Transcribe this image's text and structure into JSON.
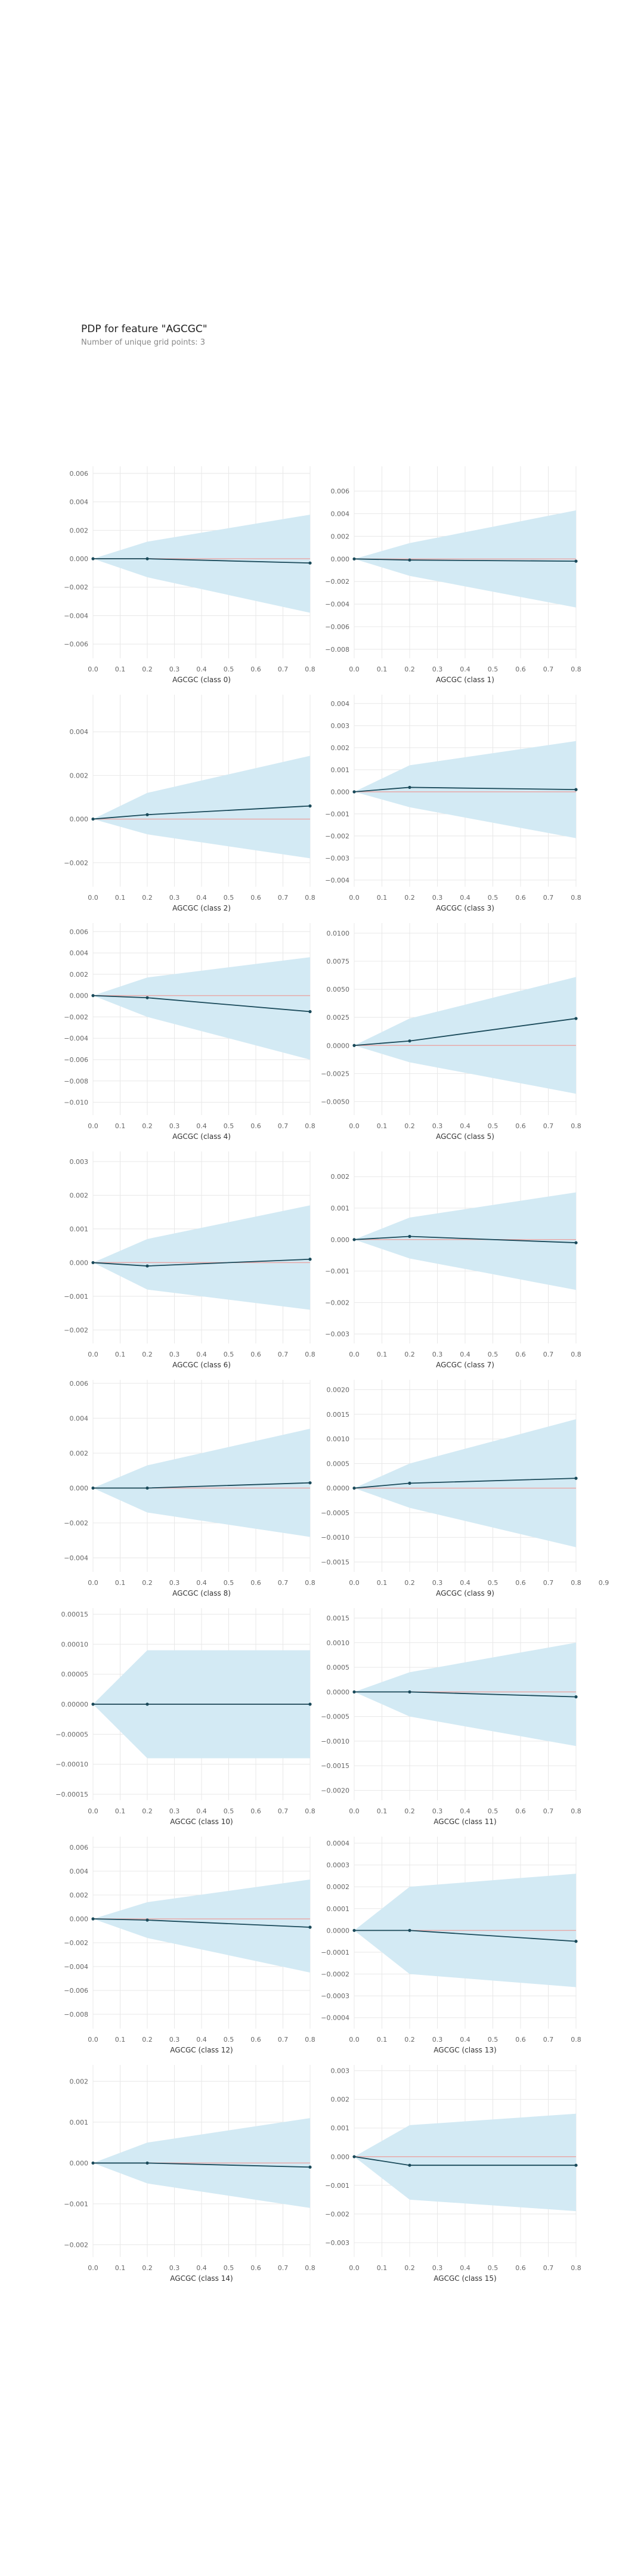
{
  "title": "PDP for feature \"AGCGC\"",
  "subtitle": "Number of unique grid points: 3",
  "style": {
    "band": "#d3eaf4",
    "line": "#1a4a5a",
    "zero": "#e7a9a9",
    "grid": "#e8e8e8",
    "tick": "#666666"
  },
  "chart_data": [
    {
      "type": "line",
      "xlabel": "AGCGC (class 0)",
      "x": [
        0.0,
        0.2,
        0.8
      ],
      "y": [
        0.0,
        0.0,
        -0.0003
      ],
      "lower": [
        0.0,
        -0.0013,
        -0.0038
      ],
      "upper": [
        0.0,
        0.0012,
        0.0031
      ],
      "xticks": [
        "0.0",
        "0.1",
        "0.2",
        "0.3",
        "0.4",
        "0.5",
        "0.6",
        "0.7",
        "0.8"
      ],
      "ylim": [
        -0.007,
        0.0065
      ],
      "yticks": [
        0.006,
        0.004,
        0.002,
        0.0,
        -0.002,
        -0.004,
        -0.006
      ],
      "ytick_labels": [
        "0.006",
        "0.004",
        "0.002",
        "0.000",
        "−0.002",
        "−0.004",
        "−0.006"
      ]
    },
    {
      "type": "line",
      "xlabel": "AGCGC (class 1)",
      "x": [
        0.0,
        0.2,
        0.8
      ],
      "y": [
        0.0,
        -0.0001,
        -0.0002
      ],
      "lower": [
        0.0,
        -0.0015,
        -0.0043
      ],
      "upper": [
        0.0,
        0.0014,
        0.0043
      ],
      "xticks": [
        "0.0",
        "0.1",
        "0.2",
        "0.3",
        "0.4",
        "0.5",
        "0.6",
        "0.7",
        "0.8"
      ],
      "ylim": [
        -0.0088,
        0.0082
      ],
      "yticks": [
        0.006,
        0.004,
        0.002,
        0.0,
        -0.002,
        -0.004,
        -0.006,
        -0.008
      ],
      "ytick_labels": [
        "0.006",
        "0.004",
        "0.002",
        "0.000",
        "−0.002",
        "−0.004",
        "−0.006",
        "−0.008"
      ]
    },
    {
      "type": "line",
      "xlabel": "AGCGC (class 2)",
      "x": [
        0.0,
        0.2,
        0.8
      ],
      "y": [
        0.0,
        0.0002,
        0.0006
      ],
      "lower": [
        0.0,
        -0.0007,
        -0.0018
      ],
      "upper": [
        0.0,
        0.0012,
        0.0029
      ],
      "xticks": [
        "0.0",
        "0.1",
        "0.2",
        "0.3",
        "0.4",
        "0.5",
        "0.6",
        "0.7",
        "0.8"
      ],
      "ylim": [
        -0.0031,
        0.0057
      ],
      "yticks": [
        0.004,
        0.002,
        0.0,
        -0.002
      ],
      "ytick_labels": [
        "0.004",
        "0.002",
        "0.000",
        "−0.002"
      ]
    },
    {
      "type": "line",
      "xlabel": "AGCGC (class 3)",
      "x": [
        0.0,
        0.2,
        0.8
      ],
      "y": [
        0.0,
        0.0002,
        0.0001
      ],
      "lower": [
        0.0,
        -0.0007,
        -0.0021
      ],
      "upper": [
        0.0,
        0.0012,
        0.0023
      ],
      "xticks": [
        "0.0",
        "0.1",
        "0.2",
        "0.3",
        "0.4",
        "0.5",
        "0.6",
        "0.7",
        "0.8"
      ],
      "ylim": [
        -0.0043,
        0.0044
      ],
      "yticks": [
        0.004,
        0.003,
        0.002,
        0.001,
        0.0,
        -0.001,
        -0.002,
        -0.003,
        -0.004
      ],
      "ytick_labels": [
        "0.004",
        "0.003",
        "0.002",
        "0.001",
        "0.000",
        "−0.001",
        "−0.002",
        "−0.003",
        "−0.004"
      ]
    },
    {
      "type": "line",
      "xlabel": "AGCGC (class 4)",
      "x": [
        0.0,
        0.2,
        0.8
      ],
      "y": [
        0.0,
        -0.0002,
        -0.0015
      ],
      "lower": [
        0.0,
        -0.002,
        -0.006
      ],
      "upper": [
        0.0,
        0.0017,
        0.0036
      ],
      "xticks": [
        "0.0",
        "0.1",
        "0.2",
        "0.3",
        "0.4",
        "0.5",
        "0.6",
        "0.7",
        "0.8"
      ],
      "ylim": [
        -0.0112,
        0.0068
      ],
      "yticks": [
        0.006,
        0.004,
        0.002,
        0.0,
        -0.002,
        -0.004,
        -0.006,
        -0.008,
        -0.01
      ],
      "ytick_labels": [
        "0.006",
        "0.004",
        "0.002",
        "0.000",
        "−0.002",
        "−0.004",
        "−0.006",
        "−0.008",
        "−0.010"
      ]
    },
    {
      "type": "line",
      "xlabel": "AGCGC (class 5)",
      "x": [
        0.0,
        0.2,
        0.8
      ],
      "y": [
        0.0,
        0.0004,
        0.0024
      ],
      "lower": [
        0.0,
        -0.0015,
        -0.0043
      ],
      "upper": [
        0.0,
        0.0024,
        0.0061
      ],
      "xticks": [
        "0.0",
        "0.1",
        "0.2",
        "0.3",
        "0.4",
        "0.5",
        "0.6",
        "0.7",
        "0.8"
      ],
      "ylim": [
        -0.0062,
        0.0109
      ],
      "yticks": [
        0.01,
        0.0075,
        0.005,
        0.0025,
        0.0,
        -0.0025,
        -0.005
      ],
      "ytick_labels": [
        "0.0100",
        "0.0075",
        "0.0050",
        "0.0025",
        "0.0000",
        "−0.0025",
        "−0.0050"
      ]
    },
    {
      "type": "line",
      "xlabel": "AGCGC (class 6)",
      "x": [
        0.0,
        0.2,
        0.8
      ],
      "y": [
        0.0,
        -0.0001,
        0.0001
      ],
      "lower": [
        0.0,
        -0.0008,
        -0.0014
      ],
      "upper": [
        0.0,
        0.0007,
        0.0017
      ],
      "xticks": [
        "0.0",
        "0.1",
        "0.2",
        "0.3",
        "0.4",
        "0.5",
        "0.6",
        "0.7",
        "0.8"
      ],
      "ylim": [
        -0.0024,
        0.0033
      ],
      "yticks": [
        0.003,
        0.002,
        0.001,
        0.0,
        -0.001,
        -0.002
      ],
      "ytick_labels": [
        "0.003",
        "0.002",
        "0.001",
        "0.000",
        "−0.001",
        "−0.002"
      ]
    },
    {
      "type": "line",
      "xlabel": "AGCGC (class 7)",
      "x": [
        0.0,
        0.2,
        0.8
      ],
      "y": [
        0.0,
        0.0001,
        -0.0001
      ],
      "lower": [
        0.0,
        -0.0006,
        -0.0016
      ],
      "upper": [
        0.0,
        0.0007,
        0.0015
      ],
      "xticks": [
        "0.0",
        "0.1",
        "0.2",
        "0.3",
        "0.4",
        "0.5",
        "0.6",
        "0.7",
        "0.8"
      ],
      "ylim": [
        -0.0033,
        0.0028
      ],
      "yticks": [
        0.002,
        0.001,
        0.0,
        -0.001,
        -0.002,
        -0.003
      ],
      "ytick_labels": [
        "0.002",
        "0.001",
        "0.000",
        "−0.001",
        "−0.002",
        "−0.003"
      ]
    },
    {
      "type": "line",
      "xlabel": "AGCGC (class 8)",
      "x": [
        0.0,
        0.2,
        0.8
      ],
      "y": [
        0.0,
        0.0,
        0.0003
      ],
      "lower": [
        0.0,
        -0.0014,
        -0.0028
      ],
      "upper": [
        0.0,
        0.0013,
        0.0034
      ],
      "xticks": [
        "0.0",
        "0.1",
        "0.2",
        "0.3",
        "0.4",
        "0.5",
        "0.6",
        "0.7",
        "0.8"
      ],
      "ylim": [
        -0.0048,
        0.0062
      ],
      "yticks": [
        0.006,
        0.004,
        0.002,
        0.0,
        -0.002,
        -0.004
      ],
      "ytick_labels": [
        "0.006",
        "0.004",
        "0.002",
        "0.000",
        "−0.002",
        "−0.004"
      ]
    },
    {
      "type": "line",
      "xlabel": "AGCGC (class 9)",
      "x": [
        0.0,
        0.2,
        0.8
      ],
      "y": [
        0.0,
        0.0001,
        0.0002
      ],
      "lower": [
        0.0,
        -0.0004,
        -0.0012
      ],
      "upper": [
        0.0,
        0.0005,
        0.0014
      ],
      "xticks": [
        "0.0",
        "0.1",
        "0.2",
        "0.3",
        "0.4",
        "0.5",
        "0.6",
        "0.7",
        "0.8",
        "0.9"
      ],
      "ylim": [
        -0.0017,
        0.0022
      ],
      "yticks": [
        0.002,
        0.0015,
        0.001,
        0.0005,
        0.0,
        -0.0005,
        -0.001,
        -0.0015
      ],
      "ytick_labels": [
        "0.0020",
        "0.0015",
        "0.0010",
        "0.0005",
        "0.0000",
        "−0.0005",
        "−0.0010",
        "−0.0015"
      ]
    },
    {
      "type": "line",
      "xlabel": "AGCGC (class 10)",
      "x": [
        0.0,
        0.2,
        0.8
      ],
      "y": [
        0.0,
        0.0,
        0.0
      ],
      "lower": [
        0.0,
        -9e-05,
        -9e-05
      ],
      "upper": [
        0.0,
        9e-05,
        9e-05
      ],
      "xticks": [
        "0.0",
        "0.1",
        "0.2",
        "0.3",
        "0.4",
        "0.5",
        "0.6",
        "0.7",
        "0.8"
      ],
      "ylim": [
        -0.00016,
        0.00016
      ],
      "yticks": [
        0.00015,
        0.0001,
        5e-05,
        0.0,
        -5e-05,
        -0.0001,
        -0.00015
      ],
      "ytick_labels": [
        "0.00015",
        "0.00010",
        "0.00005",
        "0.00000",
        "−0.00005",
        "−0.00010",
        "−0.00015"
      ]
    },
    {
      "type": "line",
      "xlabel": "AGCGC (class 11)",
      "x": [
        0.0,
        0.2,
        0.8
      ],
      "y": [
        0.0,
        0.0,
        -0.0001
      ],
      "lower": [
        0.0,
        -0.0005,
        -0.0011
      ],
      "upper": [
        0.0,
        0.0004,
        0.001
      ],
      "xticks": [
        "0.0",
        "0.1",
        "0.2",
        "0.3",
        "0.4",
        "0.5",
        "0.6",
        "0.7",
        "0.8"
      ],
      "ylim": [
        -0.0022,
        0.0017
      ],
      "yticks": [
        0.0015,
        0.001,
        0.0005,
        0.0,
        -0.0005,
        -0.001,
        -0.0015,
        -0.002
      ],
      "ytick_labels": [
        "0.0015",
        "0.0010",
        "0.0005",
        "0.0000",
        "−0.0005",
        "−0.0010",
        "−0.0015",
        "−0.0020"
      ]
    },
    {
      "type": "line",
      "xlabel": "AGCGC (class 12)",
      "x": [
        0.0,
        0.2,
        0.8
      ],
      "y": [
        0.0,
        -0.0001,
        -0.0007
      ],
      "lower": [
        0.0,
        -0.0016,
        -0.0045
      ],
      "upper": [
        0.0,
        0.0014,
        0.0033
      ],
      "xticks": [
        "0.0",
        "0.1",
        "0.2",
        "0.3",
        "0.4",
        "0.5",
        "0.6",
        "0.7",
        "0.8"
      ],
      "ylim": [
        -0.0092,
        0.0069
      ],
      "yticks": [
        0.006,
        0.004,
        0.002,
        0.0,
        -0.002,
        -0.004,
        -0.006,
        -0.008
      ],
      "ytick_labels": [
        "0.006",
        "0.004",
        "0.002",
        "0.000",
        "−0.002",
        "−0.004",
        "−0.006",
        "−0.008"
      ]
    },
    {
      "type": "line",
      "xlabel": "AGCGC (class 13)",
      "x": [
        0.0,
        0.2,
        0.8
      ],
      "y": [
        0.0,
        0.0,
        -5e-05
      ],
      "lower": [
        0.0,
        -0.0002,
        -0.00026
      ],
      "upper": [
        0.0,
        0.0002,
        0.00026
      ],
      "xticks": [
        "0.0",
        "0.1",
        "0.2",
        "0.3",
        "0.4",
        "0.5",
        "0.6",
        "0.7",
        "0.8"
      ],
      "ylim": [
        -0.00045,
        0.00043
      ],
      "yticks": [
        0.0004,
        0.0003,
        0.0002,
        0.0001,
        0.0,
        -0.0001,
        -0.0002,
        -0.0003,
        -0.0004
      ],
      "ytick_labels": [
        "0.0004",
        "0.0003",
        "0.0002",
        "0.0001",
        "0.0000",
        "−0.0001",
        "−0.0002",
        "−0.0003",
        "−0.0004"
      ]
    },
    {
      "type": "line",
      "xlabel": "AGCGC (class 14)",
      "x": [
        0.0,
        0.2,
        0.8
      ],
      "y": [
        0.0,
        0.0,
        -0.0001
      ],
      "lower": [
        0.0,
        -0.0005,
        -0.0011
      ],
      "upper": [
        0.0,
        0.0005,
        0.0011
      ],
      "xticks": [
        "0.0",
        "0.1",
        "0.2",
        "0.3",
        "0.4",
        "0.5",
        "0.6",
        "0.7",
        "0.8"
      ],
      "ylim": [
        -0.0023,
        0.0024
      ],
      "yticks": [
        0.002,
        0.001,
        0.0,
        -0.001,
        -0.002
      ],
      "ytick_labels": [
        "0.002",
        "0.001",
        "0.000",
        "−0.001",
        "−0.002"
      ]
    },
    {
      "type": "line",
      "xlabel": "AGCGC (class 15)",
      "x": [
        0.0,
        0.2,
        0.8
      ],
      "y": [
        0.0,
        -0.0003,
        -0.0003
      ],
      "lower": [
        0.0,
        -0.0015,
        -0.0019
      ],
      "upper": [
        0.0,
        0.0011,
        0.0015
      ],
      "xticks": [
        "0.0",
        "0.1",
        "0.2",
        "0.3",
        "0.4",
        "0.5",
        "0.6",
        "0.7",
        "0.8"
      ],
      "ylim": [
        -0.0035,
        0.0032
      ],
      "yticks": [
        0.003,
        0.002,
        0.001,
        0.0,
        -0.001,
        -0.002,
        -0.003
      ],
      "ytick_labels": [
        "0.003",
        "0.002",
        "0.001",
        "0.000",
        "−0.001",
        "−0.002",
        "−0.003"
      ]
    }
  ]
}
